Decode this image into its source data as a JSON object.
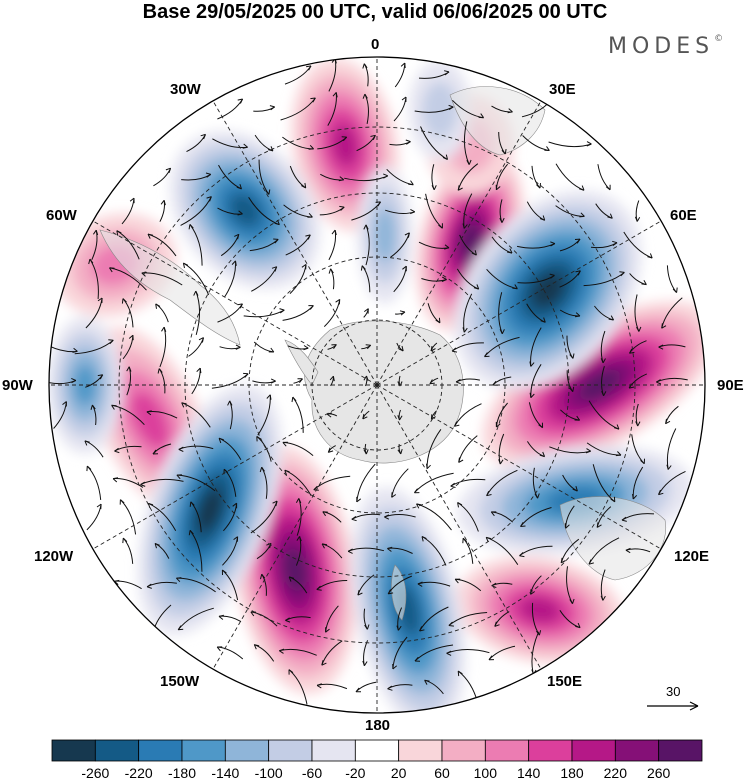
{
  "title": "Base 29/05/2025 00 UTC, valid 06/06/2025 00 UTC",
  "brand": {
    "name": "MODES",
    "mark": "©"
  },
  "longitude_labels": {
    "lon_0": "0",
    "lon_30e": "30E",
    "lon_60e": "60E",
    "lon_90e": "90E",
    "lon_120e": "120E",
    "lon_150e": "150E",
    "lon_180": "180",
    "lon_150w": "150W",
    "lon_120w": "120W",
    "lon_90w": "90W",
    "lon_60w": "60W",
    "lon_30w": "30W"
  },
  "vector_scale": {
    "label": "30"
  },
  "colorbar": {
    "labels": [
      "-260",
      "-220",
      "-180",
      "-140",
      "-100",
      "-60",
      "-20",
      "20",
      "60",
      "100",
      "140",
      "180",
      "220",
      "260"
    ],
    "colors": [
      "#16384f",
      "#145a86",
      "#2a7bb4",
      "#4f98c8",
      "#8fb5d9",
      "#c3cde5",
      "#e5e5f1",
      "#ffffff",
      "#f9d6da",
      "#f3aec4",
      "#ec7cb2",
      "#dc3f9c",
      "#b51887",
      "#851077",
      "#581466"
    ]
  },
  "map": {
    "projection": "south polar stereographic",
    "highs_color": "#dc3f9c",
    "lows_color": "#2a7bb4",
    "land_color": "#e6e6e6"
  }
}
